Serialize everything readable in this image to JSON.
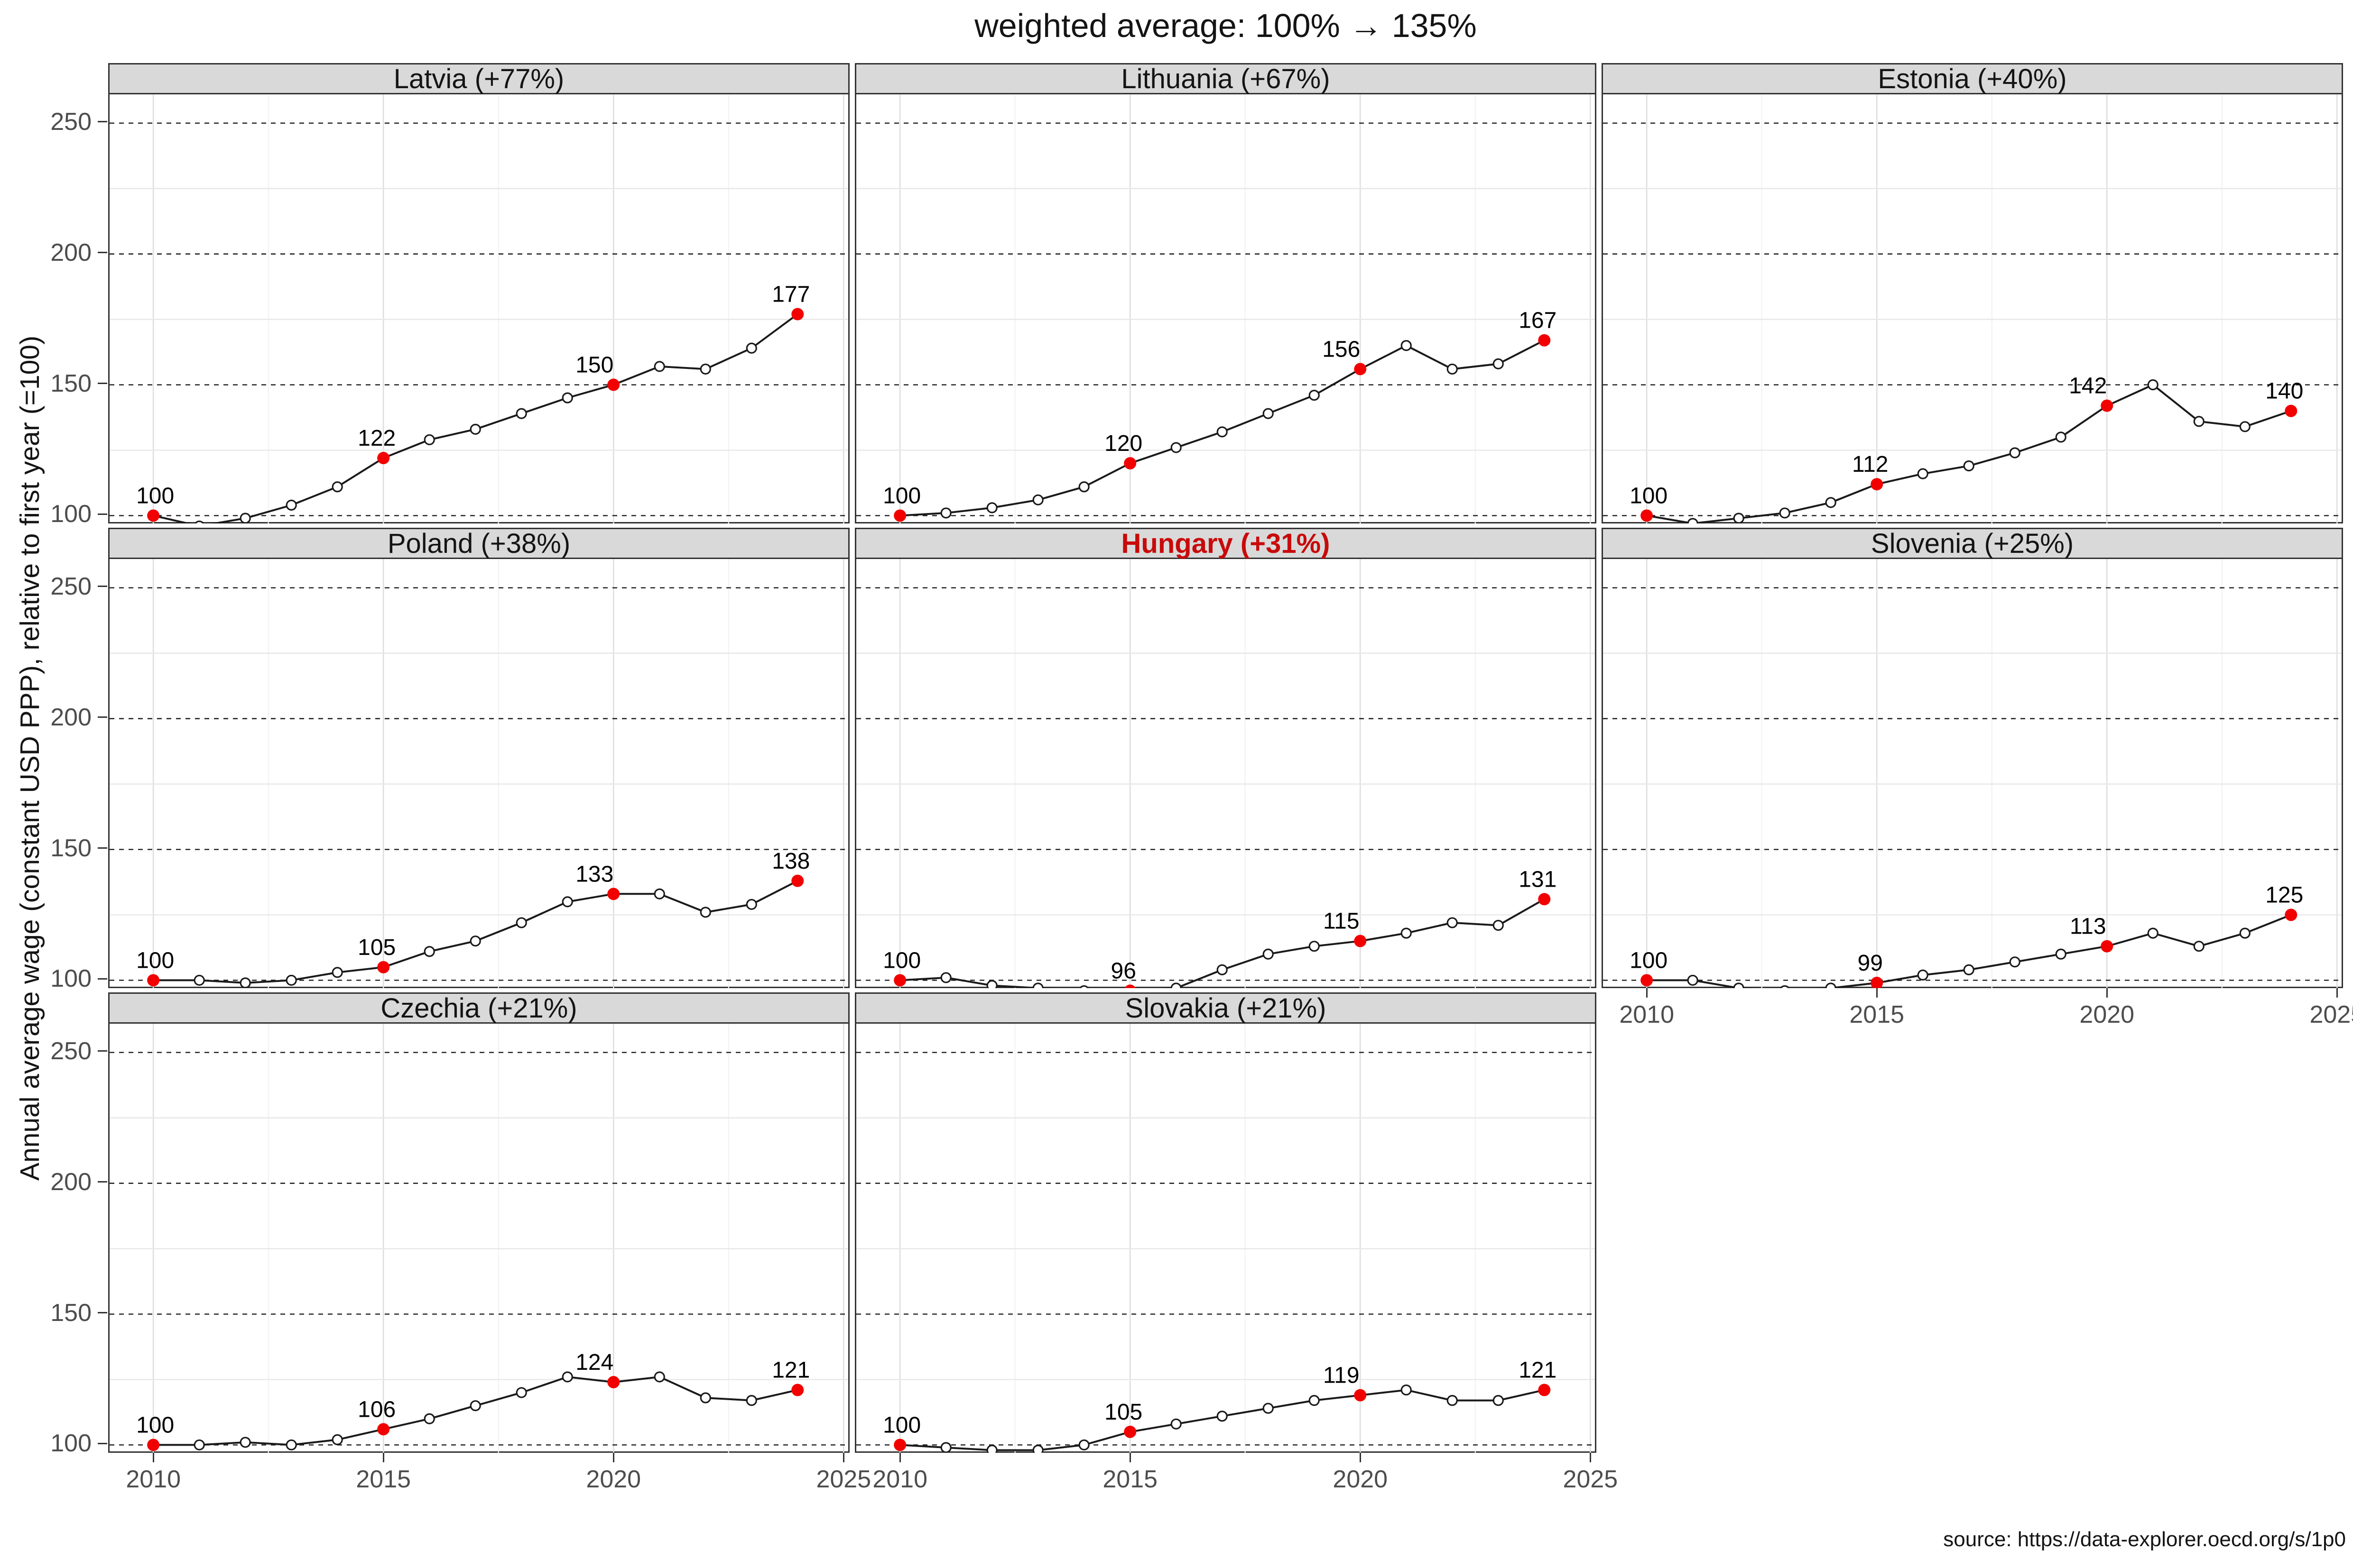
{
  "title": "weighted average: 100% → 135%",
  "y_axis_title": "Annual average wage (constant USD PPP), relative to first year (=100)",
  "source": "source: https://data-explorer.oecd.org/s/1p0",
  "colors": {
    "highlight_red": "#c80a0a",
    "dot_red": "#f20000",
    "strip_bg": "#d9d9d9",
    "panel_border": "#333333",
    "axis_text": "#4d4d4d",
    "line": "#1a1a1a",
    "grid_major_h": "#1a1a1a",
    "grid_minor_h": "#e8e8e8",
    "grid_major_v": "#dedede",
    "grid_minor_v": "#f2f2f2"
  },
  "axes": {
    "years": [
      2010,
      2011,
      2012,
      2013,
      2014,
      2015,
      2016,
      2017,
      2018,
      2019,
      2020,
      2021,
      2022,
      2023,
      2024
    ],
    "x_domain": [
      2009.05,
      2025.1
    ],
    "y_domain": [
      97,
      261
    ],
    "x_breaks": [
      2010,
      2015,
      2020,
      2025
    ],
    "x_minor": [
      2012.5,
      2017.5,
      2022.5
    ],
    "y_breaks": [
      250,
      200,
      150,
      100
    ],
    "y_minor": [
      125,
      175,
      225
    ],
    "x_tick_labels": [
      "2010",
      "2015",
      "2020",
      "2025"
    ],
    "y_tick_labels": [
      "250",
      "200",
      "150",
      "100"
    ]
  },
  "chart_data": {
    "type": "line",
    "x": [
      2010,
      2011,
      2012,
      2013,
      2014,
      2015,
      2016,
      2017,
      2018,
      2019,
      2020,
      2021,
      2022,
      2023,
      2024
    ],
    "label_indices": [
      0,
      5,
      10,
      14
    ],
    "facets": [
      {
        "name": "Latvia",
        "title": "Latvia (+77%)",
        "highlighted": false,
        "values": [
          100,
          96,
          99,
          104,
          111,
          122,
          129,
          133,
          139,
          145,
          150,
          157,
          156,
          164,
          177
        ],
        "point_labels": [
          "100",
          "122",
          "150",
          "177"
        ]
      },
      {
        "name": "Lithuania",
        "title": "Lithuania (+67%)",
        "highlighted": false,
        "values": [
          100,
          101,
          103,
          106,
          111,
          120,
          126,
          132,
          139,
          146,
          156,
          165,
          156,
          158,
          167
        ],
        "point_labels": [
          "100",
          "120",
          "156",
          "167"
        ]
      },
      {
        "name": "Estonia",
        "title": "Estonia (+40%)",
        "highlighted": false,
        "values": [
          100,
          97,
          99,
          101,
          105,
          112,
          116,
          119,
          124,
          130,
          142,
          150,
          136,
          134,
          140
        ],
        "point_labels": [
          "100",
          "112",
          "142",
          "140"
        ]
      },
      {
        "name": "Poland",
        "title": "Poland (+38%)",
        "highlighted": false,
        "values": [
          100,
          100,
          99,
          100,
          103,
          105,
          111,
          115,
          122,
          130,
          133,
          133,
          126,
          129,
          138
        ],
        "point_labels": [
          "100",
          "105",
          "133",
          "138"
        ]
      },
      {
        "name": "Hungary",
        "title": "Hungary (+31%)",
        "highlighted": true,
        "values": [
          100,
          101,
          98,
          97,
          96,
          96,
          97,
          104,
          110,
          113,
          115,
          118,
          122,
          121,
          131
        ],
        "point_labels": [
          "100",
          "96",
          "115",
          "131"
        ]
      },
      {
        "name": "Slovenia",
        "title": "Slovenia (+25%)",
        "highlighted": false,
        "values": [
          100,
          100,
          97,
          96,
          97,
          99,
          102,
          104,
          107,
          110,
          113,
          118,
          113,
          118,
          125
        ],
        "point_labels": [
          "100",
          "99",
          "113",
          "125"
        ]
      },
      {
        "name": "Czechia",
        "title": "Czechia (+21%)",
        "highlighted": false,
        "values": [
          100,
          100,
          101,
          100,
          102,
          106,
          110,
          115,
          120,
          126,
          124,
          126,
          118,
          117,
          121
        ],
        "point_labels": [
          "100",
          "106",
          "124",
          "121"
        ]
      },
      {
        "name": "Slovakia",
        "title": "Slovakia (+21%)",
        "highlighted": false,
        "values": [
          100,
          99,
          98,
          98,
          100,
          105,
          108,
          111,
          114,
          117,
          119,
          121,
          117,
          117,
          121
        ],
        "point_labels": [
          "100",
          "105",
          "119",
          "121"
        ]
      }
    ]
  },
  "layout_hints": {
    "grid_cols": 3,
    "x_axis_facets": [
      5,
      6,
      7
    ],
    "legend": "none",
    "grid": "on"
  }
}
